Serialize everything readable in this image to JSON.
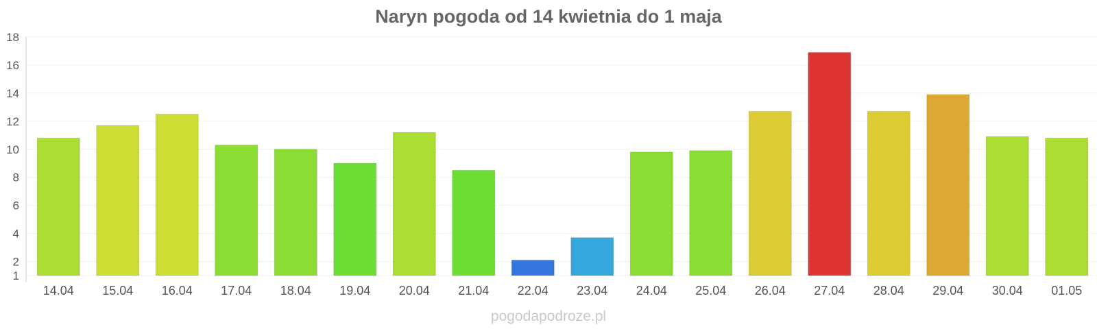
{
  "chart_data": {
    "type": "bar",
    "title": "Naryn pogoda od 14 kwietnia do 1 maja",
    "xlabel": "",
    "ylabel": "",
    "categories": [
      "14.04",
      "15.04",
      "16.04",
      "17.04",
      "18.04",
      "19.04",
      "20.04",
      "21.04",
      "22.04",
      "23.04",
      "24.04",
      "25.04",
      "26.04",
      "27.04",
      "28.04",
      "29.04",
      "30.04",
      "01.05"
    ],
    "values": [
      10.8,
      11.7,
      12.5,
      10.3,
      10.0,
      9.0,
      11.2,
      8.5,
      2.1,
      3.7,
      9.8,
      9.9,
      12.7,
      16.9,
      12.7,
      13.9,
      10.9,
      10.8
    ],
    "colors": [
      "#acdd33",
      "#cddd33",
      "#cddd33",
      "#8cdd33",
      "#8cdd33",
      "#6cdd33",
      "#acdd33",
      "#6cdd33",
      "#3476dd",
      "#34a8dd",
      "#8cdd33",
      "#8cdd33",
      "#ddcc33",
      "#dd3434",
      "#ddcc33",
      "#dda833",
      "#acdd33",
      "#acdd33"
    ],
    "y_ticks": [
      1,
      2,
      4,
      6,
      8,
      10,
      12,
      14,
      16,
      18
    ],
    "ylim": [
      1,
      18
    ],
    "grid": true,
    "legend": "none"
  },
  "footer": "pogodapodroze.pl"
}
